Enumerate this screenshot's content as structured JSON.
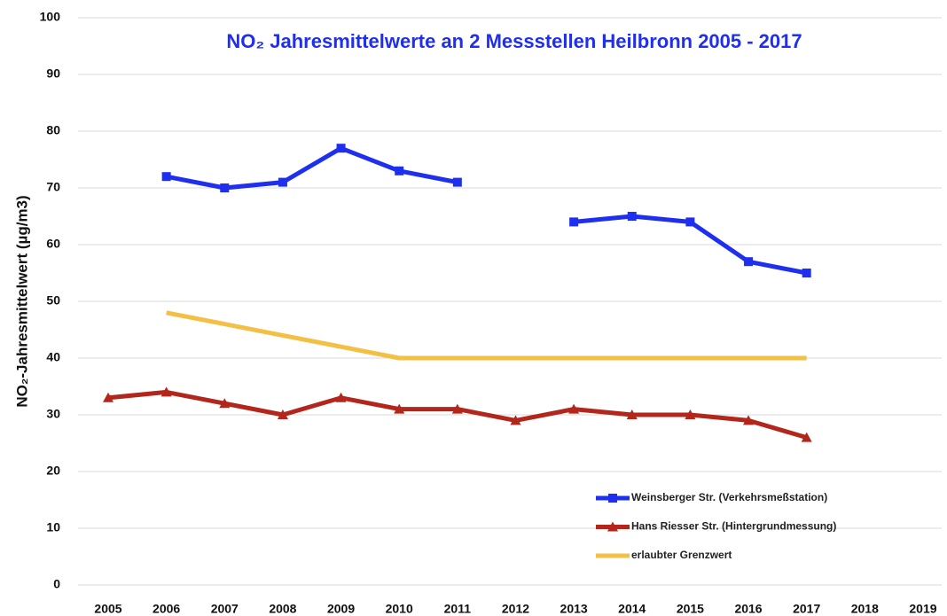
{
  "chart_data": {
    "type": "line",
    "title": "NO₂ Jahresmittelwerte an 2 Messstellen Heilbronn 2005 - 2017",
    "y_label": "NO₂-Jahresmittelwert (µg/m3)",
    "categories": [
      "2005",
      "2006",
      "2007",
      "2008",
      "2009",
      "2010",
      "2011",
      "2012",
      "2013",
      "2014",
      "2015",
      "2016",
      "2017",
      "2018",
      "2019"
    ],
    "series": [
      {
        "name": "Weinsberger Str. (Verkehrsmeßstation)",
        "color": "#1f2ff0",
        "marker": "square",
        "values": [
          null,
          72,
          70,
          71,
          77,
          73,
          71,
          null,
          64,
          65,
          64,
          57,
          55,
          null,
          null
        ]
      },
      {
        "name": "Hans Riesser Str. (Hintergrundmessung)",
        "color": "#b3261c",
        "marker": "triangle",
        "values": [
          33,
          34,
          32,
          30,
          33,
          31,
          31,
          29,
          31,
          30,
          30,
          29,
          26,
          null,
          null
        ]
      },
      {
        "name": "erlaubter Grenzwert",
        "color": "#f4bf45",
        "values": [
          null,
          48,
          46,
          44,
          42,
          40,
          40,
          40,
          40,
          40,
          40,
          40,
          40,
          null,
          null
        ]
      }
    ],
    "ylim": [
      0,
      100
    ],
    "yticks": [
      0,
      10,
      20,
      30,
      40,
      50,
      60,
      70,
      80,
      90,
      100
    ],
    "grid": true,
    "legend": "lower right"
  }
}
